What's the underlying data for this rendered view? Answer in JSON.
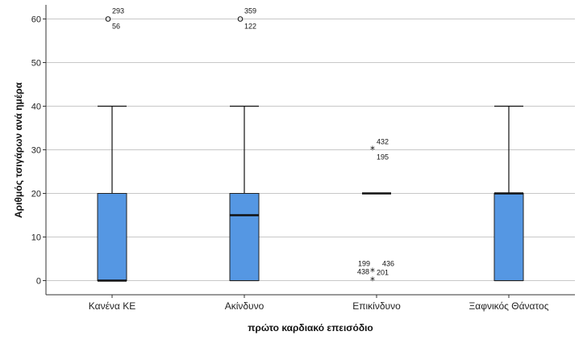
{
  "chart_data": {
    "type": "boxplot",
    "xlabel": "πρώτο καρδιακό επεισόδιο",
    "ylabel": "Αριθμός τσιγάρων ανά ημέρα",
    "ylim": [
      -3,
      64
    ],
    "yticks": [
      0,
      10,
      20,
      30,
      40,
      50,
      60
    ],
    "grid": true,
    "box_color": "#5597e3",
    "categories": [
      "Κανένα ΚΕ",
      "Ακίνδυνο",
      "Επικίνδυνο",
      "Ξαφνικός Θάνατος"
    ],
    "boxes": [
      {
        "category": "Κανένα ΚΕ",
        "whisker_low": 0,
        "q1": 0,
        "median": 0,
        "q3": 20,
        "whisker_high": 40
      },
      {
        "category": "Ακίνδυνο",
        "whisker_low": 0,
        "q1": 0,
        "median": 15,
        "q3": 20,
        "whisker_high": 40
      },
      {
        "category": "Επικίνδυνο",
        "whisker_low": 20,
        "q1": 20,
        "median": 20,
        "q3": 20,
        "whisker_high": 20
      },
      {
        "category": "Ξαφνικός Θάνατος",
        "whisker_low": 0,
        "q1": 0,
        "median": 20,
        "q3": 20,
        "whisker_high": 40
      }
    ],
    "outliers": [
      {
        "category": "Κανένα ΚΕ",
        "value": 60,
        "marker": "circle",
        "labels": [
          "293",
          "56"
        ]
      },
      {
        "category": "Ακίνδυνο",
        "value": 60,
        "marker": "circle",
        "labels": [
          "359",
          "122"
        ]
      },
      {
        "category": "Επικίνδυνο",
        "value": 30,
        "marker": "star",
        "labels": [
          "432",
          "195"
        ]
      },
      {
        "category": "Επικίνδυνο",
        "value": 2,
        "marker": "star",
        "labels": [
          "199",
          "436",
          "438"
        ]
      },
      {
        "category": "Επικίνδυνο",
        "value": 0,
        "marker": "star",
        "labels": [
          "201"
        ]
      }
    ]
  }
}
